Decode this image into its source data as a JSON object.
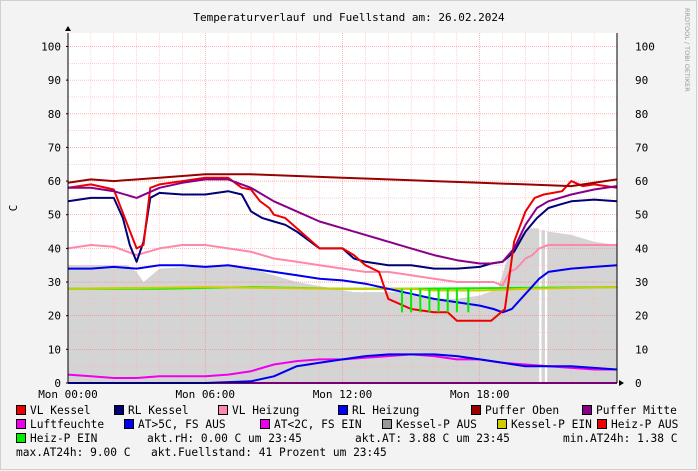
{
  "chart_data": {
    "type": "line",
    "title": "Temperaturverlauf und Fuellstand am: 26.02.2024",
    "ylabel": "C",
    "ylim": [
      0,
      104
    ],
    "xlim": [
      0,
      24
    ],
    "yticks": [
      0,
      10,
      20,
      30,
      40,
      50,
      60,
      70,
      80,
      90,
      100
    ],
    "xticks": [
      {
        "x": 0,
        "label": "Mon 00:00"
      },
      {
        "x": 6,
        "label": "Mon 06:00"
      },
      {
        "x": 12,
        "label": "Mon 12:00"
      },
      {
        "x": 18,
        "label": "Mon 18:00"
      }
    ],
    "grid": true,
    "watermark": "RRDTOOL / TOBI OETIKER",
    "area_series": {
      "name": "Fuellstand",
      "color": "#d4d4d4",
      "x": [
        0,
        2.6,
        3,
        3.3,
        4,
        6.5,
        8,
        10,
        12.5,
        14,
        14.5,
        15,
        16,
        17,
        18,
        18.8,
        19.2,
        19.5,
        19.8,
        20.2,
        20.5,
        21,
        22,
        23,
        24
      ],
      "values": [
        35,
        35,
        33,
        30,
        34,
        35,
        34,
        30,
        27,
        27,
        27,
        26,
        25,
        25,
        26,
        28,
        37,
        40,
        44,
        46,
        46,
        45,
        44,
        42,
        41
      ],
      "gaps": [
        [
          20.6,
          20.7
        ],
        [
          20.85,
          20.95
        ]
      ]
    },
    "series": [
      {
        "name": "Puffer Oben",
        "color": "#990000",
        "x": [
          0,
          1,
          2,
          4,
          6,
          8,
          10,
          12,
          14,
          16,
          18,
          20,
          22,
          23,
          24
        ],
        "values": [
          59.5,
          60.5,
          60,
          61,
          62,
          62,
          61.5,
          61,
          60.5,
          60,
          59.5,
          59,
          58.5,
          59.5,
          60.5
        ]
      },
      {
        "name": "Puffer Mitte",
        "color": "#880088",
        "x": [
          0,
          1,
          2,
          3,
          4,
          5,
          6,
          7,
          8,
          9,
          10,
          11,
          12,
          13,
          14,
          15,
          16,
          17,
          18,
          18.5,
          19,
          19.5,
          20,
          20.5,
          21,
          22,
          23,
          24
        ],
        "values": [
          58,
          58,
          57,
          55,
          58,
          59.5,
          60.5,
          60.5,
          58,
          54,
          51,
          48,
          46,
          44,
          42,
          40,
          38,
          36.5,
          35.5,
          35.5,
          36,
          40,
          47,
          52,
          54,
          56,
          57.5,
          58.5
        ]
      },
      {
        "name": "VL Kessel",
        "color": "#ee0000",
        "x": [
          0,
          1,
          2,
          2.6,
          3,
          3.3,
          3.6,
          4,
          5,
          6,
          7,
          7.6,
          8,
          8.4,
          8.8,
          9,
          9.5,
          10,
          11,
          12,
          12.5,
          13,
          13.6,
          14,
          15,
          16,
          16.6,
          17,
          18,
          18.5,
          19.1,
          19.5,
          20,
          20.4,
          20.8,
          21.2,
          21.6,
          22,
          22.5,
          23,
          24
        ],
        "values": [
          58,
          59,
          57.5,
          47,
          40,
          41,
          58,
          59,
          60,
          61,
          61,
          58,
          57.5,
          54,
          52,
          50,
          49,
          46,
          40,
          40,
          38,
          35,
          33,
          25,
          22,
          21,
          21,
          18.5,
          18.5,
          18.5,
          22,
          42,
          51,
          55,
          56,
          56.5,
          57,
          60,
          58.5,
          59,
          58
        ]
      },
      {
        "name": "RL Kessel",
        "color": "#000077",
        "x": [
          0,
          1,
          2,
          2.4,
          2.7,
          3,
          3.3,
          3.6,
          4,
          5,
          6,
          7,
          7.6,
          8,
          8.5,
          9,
          9.5,
          10,
          11,
          12,
          12.5,
          13,
          14,
          15,
          16,
          17,
          18,
          18.5,
          19,
          19.5,
          20,
          20.5,
          21,
          21.5,
          22,
          23,
          24
        ],
        "values": [
          54,
          55,
          55,
          49,
          41,
          36,
          42,
          55,
          56.5,
          56,
          56,
          57,
          56,
          51,
          49,
          48,
          47,
          45,
          40,
          40,
          37,
          36,
          35,
          35,
          34,
          34,
          34.5,
          35.5,
          36,
          39,
          45,
          49,
          52,
          53,
          54,
          54.5,
          54
        ]
      },
      {
        "name": "VL Heizung",
        "color": "#ff88aa",
        "x": [
          0,
          1,
          2,
          3,
          4,
          5,
          6,
          7,
          8,
          9,
          10,
          11,
          12,
          13,
          14,
          15,
          16,
          17,
          18,
          18.6,
          19,
          19.3,
          19.6,
          20,
          20.3,
          20.6,
          21,
          21.3,
          22,
          23,
          24
        ],
        "values": [
          40,
          41,
          40.5,
          38,
          40,
          41,
          41,
          40,
          39,
          37,
          36,
          35,
          34,
          33,
          33,
          32,
          31,
          30,
          30,
          30,
          29,
          33,
          34,
          37,
          38,
          40,
          41,
          41,
          41,
          41,
          41
        ]
      },
      {
        "name": "RL Heizung",
        "color": "#0000ee",
        "x": [
          0,
          1,
          2,
          3,
          4,
          5,
          6,
          7,
          8,
          9,
          10,
          11,
          12,
          13,
          14,
          15,
          16,
          17,
          18,
          18.6,
          19,
          19.4,
          19.8,
          20.2,
          20.6,
          21,
          22,
          23,
          24
        ],
        "values": [
          34,
          34,
          34.5,
          34,
          35,
          35,
          34.5,
          35,
          34,
          33,
          32,
          31,
          30.5,
          29.5,
          28,
          26.5,
          25,
          24,
          23,
          22,
          21,
          22,
          25,
          28,
          31,
          33,
          34,
          34.5,
          35
        ]
      },
      {
        "name": "Kessel-P EIN",
        "color": "#cccc00",
        "x": [
          0,
          6,
          12,
          15,
          16,
          17,
          18,
          20,
          24
        ],
        "values": [
          28,
          28.5,
          28,
          28,
          27.5,
          27.5,
          27.5,
          28,
          28.5
        ]
      },
      {
        "name": "AT>5C, FS AUS",
        "color": "#0000ee",
        "x": [
          0,
          4,
          6,
          8,
          9,
          10,
          11,
          12,
          13,
          14,
          15,
          16,
          17,
          18,
          19,
          20,
          21,
          22,
          23,
          24
        ],
        "values": [
          0,
          0,
          0,
          0.5,
          2,
          5,
          6,
          7,
          8,
          8.5,
          8.5,
          8.5,
          8,
          7,
          6,
          5,
          5,
          5,
          4.5,
          4
        ]
      },
      {
        "name": "Luftfeuchte",
        "color": "#ee00ee",
        "x": [
          0,
          1,
          2,
          3,
          4,
          5,
          6,
          7,
          8,
          9,
          10,
          11,
          12,
          13,
          14,
          15,
          16,
          17,
          18,
          19,
          20,
          21,
          22,
          23,
          24
        ],
        "values": [
          2.5,
          2,
          1.5,
          1.5,
          2,
          2,
          2,
          2.5,
          3.5,
          5.5,
          6.5,
          7,
          7,
          7.5,
          8,
          8.5,
          8,
          7,
          7,
          6,
          5.5,
          5,
          4.5,
          4,
          4
        ]
      },
      {
        "name": "AT<2C, FS EIN",
        "color": "#ee00ee",
        "x": [
          0,
          24
        ],
        "values": [
          0,
          0
        ]
      },
      {
        "name": "Heiz-P EIN",
        "color": "#00ee00",
        "x": [
          0,
          4,
          8,
          12,
          14.5,
          24
        ],
        "values": [
          28,
          28,
          28.5,
          28,
          28,
          28.5
        ]
      }
    ],
    "heizp_bars": {
      "color": "#00ee00",
      "x": [
        14.6,
        15.0,
        15.4,
        15.8,
        16.2,
        16.6,
        17.0,
        17.5
      ],
      "low": 21
    }
  },
  "legend": {
    "items": [
      {
        "label": "VL Kessel",
        "color": "#ee0000"
      },
      {
        "label": "RL Kessel",
        "color": "#000077"
      },
      {
        "label": "VL Heizung",
        "color": "#ff88aa"
      },
      {
        "label": "RL Heizung",
        "color": "#0000ee"
      },
      {
        "label": "Puffer Oben",
        "color": "#990000"
      },
      {
        "label": "Puffer Mitte",
        "color": "#880088"
      },
      {
        "label": "Luftfeuchte",
        "color": "#ee00ee"
      },
      {
        "label": "AT>5C, FS AUS",
        "color": "#0000ee"
      },
      {
        "label": "AT<2C, FS EIN",
        "color": "#ee00ee"
      },
      {
        "label": "Kessel-P AUS",
        "color": "#999999"
      },
      {
        "label": "Kessel-P EIN",
        "color": "#cccc00"
      },
      {
        "label": "Heiz-P AUS",
        "color": "#ee0000"
      },
      {
        "label": "Heiz-P EIN",
        "color": "#00ee00"
      }
    ],
    "stats": {
      "rh": "akt.rH: 0.00 C um 23:45",
      "at": "akt.AT: 3.88 C um 23:45",
      "min_at": "min.AT24h: 1.38 C",
      "max_at": "max.AT24h: 9.00 C",
      "fuellstand": "akt.Fuellstand:   41 Prozent um 23:45"
    }
  }
}
